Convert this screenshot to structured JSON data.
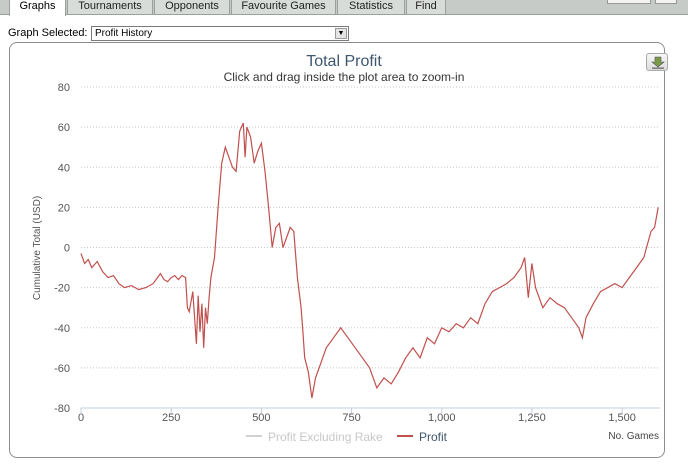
{
  "tabs": [
    {
      "label": "Graphs",
      "active": true
    },
    {
      "label": "Tournaments",
      "active": false
    },
    {
      "label": "Opponents",
      "active": false
    },
    {
      "label": "Favourite Games",
      "active": false
    },
    {
      "label": "Statistics",
      "active": false
    },
    {
      "label": "Find",
      "active": false
    }
  ],
  "graph_selector": {
    "label": "Graph Selected:",
    "value": "Profit History"
  },
  "export_icon": "download-icon",
  "chart_data": {
    "type": "line",
    "title": "Total Profit",
    "subtitle": "Click and drag inside the plot area to zoom-in",
    "xlabel": "No. Games",
    "ylabel": "Cumulative Total (USD)",
    "xlim": [
      0,
      1605
    ],
    "ylim": [
      -80,
      80
    ],
    "x_ticks": [
      "0",
      "250",
      "500",
      "750",
      "1,000",
      "1,250",
      "1,500"
    ],
    "x_tick_values": [
      0,
      250,
      500,
      750,
      1000,
      1250,
      1500
    ],
    "y_ticks": [
      "80",
      "60",
      "40",
      "20",
      "0",
      "-20",
      "-40",
      "-60",
      "-80"
    ],
    "y_tick_values": [
      80,
      60,
      40,
      20,
      0,
      -20,
      -40,
      -60,
      -80
    ],
    "grid": true,
    "legend_position": "bottom-center",
    "series": [
      {
        "name": "Profit Excluding Rake",
        "color": "#d0d0d0",
        "visible": false,
        "x": [],
        "y": []
      },
      {
        "name": "Profit",
        "color": "#c0504d",
        "visible": true,
        "x": [
          0,
          10,
          20,
          30,
          45,
          60,
          75,
          90,
          105,
          120,
          140,
          160,
          180,
          200,
          220,
          230,
          240,
          250,
          260,
          270,
          280,
          290,
          295,
          300,
          310,
          315,
          320,
          325,
          330,
          335,
          340,
          345,
          350,
          355,
          360,
          370,
          380,
          390,
          400,
          410,
          420,
          430,
          440,
          450,
          455,
          460,
          470,
          480,
          490,
          500,
          510,
          520,
          530,
          540,
          550,
          560,
          570,
          580,
          590,
          600,
          610,
          615,
          620,
          630,
          640,
          650,
          660,
          670,
          680,
          700,
          720,
          740,
          760,
          780,
          800,
          820,
          840,
          860,
          880,
          900,
          920,
          940,
          960,
          980,
          1000,
          1020,
          1040,
          1060,
          1080,
          1100,
          1120,
          1140,
          1160,
          1180,
          1200,
          1220,
          1230,
          1240,
          1250,
          1260,
          1280,
          1300,
          1320,
          1340,
          1360,
          1380,
          1390,
          1400,
          1420,
          1440,
          1460,
          1480,
          1500,
          1520,
          1540,
          1560,
          1580,
          1590,
          1600
        ],
        "y": [
          -3,
          -8,
          -6,
          -10,
          -7,
          -12,
          -15,
          -14,
          -18,
          -20,
          -19,
          -21,
          -20,
          -18,
          -13,
          -16,
          -17,
          -15,
          -14,
          -16,
          -14,
          -15,
          -30,
          -32,
          -22,
          -35,
          -48,
          -24,
          -42,
          -28,
          -50,
          -30,
          -38,
          -25,
          -15,
          -5,
          20,
          42,
          50,
          45,
          40,
          38,
          58,
          62,
          45,
          60,
          55,
          42,
          48,
          52,
          38,
          20,
          0,
          10,
          12,
          0,
          5,
          10,
          8,
          -15,
          -30,
          -42,
          -55,
          -62,
          -75,
          -65,
          -60,
          -55,
          -50,
          -45,
          -40,
          -45,
          -50,
          -55,
          -60,
          -70,
          -65,
          -68,
          -62,
          -55,
          -50,
          -55,
          -45,
          -48,
          -40,
          -42,
          -38,
          -40,
          -35,
          -38,
          -28,
          -22,
          -20,
          -18,
          -15,
          -10,
          -5,
          -25,
          -8,
          -20,
          -30,
          -25,
          -28,
          -30,
          -35,
          -40,
          -45,
          -35,
          -28,
          -22,
          -20,
          -18,
          -20,
          -15,
          -10,
          -5,
          8,
          10,
          20
        ]
      }
    ]
  }
}
